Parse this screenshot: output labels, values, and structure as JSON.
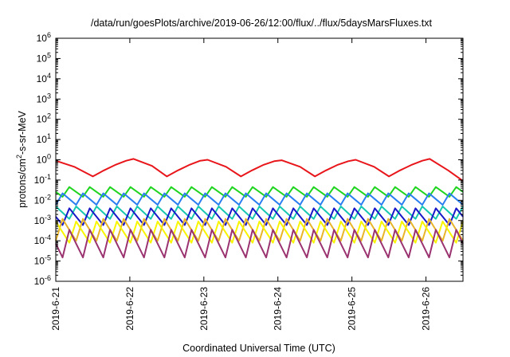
{
  "chart_data": {
    "type": "line",
    "title": "/data/run/goesPlots/archive/2019-06-26/12:00/flux/../flux/5daysMarsFluxes.txt",
    "xlabel": "Coordinated Universal Time (UTC)",
    "ylabel": "protons/cm2-s-sr-MeV",
    "y_scale": "log",
    "ylim": [
      1e-06,
      1000000.0
    ],
    "x_ticks": [
      "2019-6-21",
      "2019-6-22",
      "2019-6-23",
      "2019-6-24",
      "2019-6-25",
      "2019-6-26"
    ],
    "y_ticks": [
      {
        "base": "10",
        "exp": "-6"
      },
      {
        "base": "10",
        "exp": "-5"
      },
      {
        "base": "10",
        "exp": "-4"
      },
      {
        "base": "10",
        "exp": "-3"
      },
      {
        "base": "10",
        "exp": "-2"
      },
      {
        "base": "10",
        "exp": "-1"
      },
      {
        "base": "10",
        "exp": "0"
      },
      {
        "base": "10",
        "exp": "1"
      },
      {
        "base": "10",
        "exp": "2"
      },
      {
        "base": "10",
        "exp": "3"
      },
      {
        "base": "10",
        "exp": "4"
      },
      {
        "base": "10",
        "exp": "5"
      },
      {
        "base": "10",
        "exp": "6"
      }
    ],
    "grid": false,
    "legend": "none",
    "series": [
      {
        "color": "#e8151a",
        "x": [
          0,
          0.25,
          0.5,
          0.65,
          0.8,
          0.95,
          1.05,
          1.3,
          1.5,
          1.65,
          1.8,
          1.95,
          2.05,
          2.3,
          2.5,
          2.65,
          2.8,
          2.95,
          3.05,
          3.3,
          3.5,
          3.65,
          3.8,
          3.95,
          4.05,
          4.3,
          4.5,
          4.65,
          4.8,
          4.95,
          5.05,
          5.3,
          5.5
        ],
        "y": [
          0.9,
          0.45,
          0.15,
          0.3,
          0.55,
          0.9,
          1.1,
          0.5,
          0.15,
          0.3,
          0.55,
          0.9,
          1.0,
          0.45,
          0.15,
          0.3,
          0.55,
          0.85,
          0.95,
          0.45,
          0.15,
          0.3,
          0.55,
          0.85,
          1.0,
          0.45,
          0.15,
          0.3,
          0.55,
          0.9,
          1.1,
          0.3,
          0.09
        ]
      },
      {
        "color": "#1ed41e",
        "x": [
          0,
          5.5
        ],
        "y": [
          0.024,
          0.024
        ],
        "amplitude": [
          0.015,
          0.045
        ]
      },
      {
        "color": "#2a7ef0",
        "x": [
          0,
          5.5
        ],
        "y": [
          0.011,
          0.011
        ],
        "amplitude": [
          0.006,
          0.022
        ]
      },
      {
        "color": "#18c7b0",
        "x": [
          0,
          5.5
        ],
        "y": [
          0.0025,
          0.0025
        ],
        "amplitude": [
          0.0012,
          0.005
        ]
      },
      {
        "color": "#1818c8",
        "x": [
          0,
          5.5
        ],
        "y": [
          0.0015,
          0.0015
        ],
        "amplitude": [
          0.0006,
          0.004
        ]
      },
      {
        "color": "#e8b52a",
        "x": [
          0,
          5.5
        ],
        "y": [
          0.0004,
          0.0004
        ],
        "amplitude": [
          0.0001,
          0.0012
        ]
      },
      {
        "color": "#f8f500",
        "x": [
          0,
          5.5
        ],
        "y": [
          0.0003,
          0.0003
        ],
        "amplitude": [
          8e-05,
          0.0009
        ]
      },
      {
        "color": "#9a3370",
        "x": [
          0,
          5.5
        ],
        "y": [
          8e-05,
          8e-05
        ],
        "amplitude": [
          1.5e-05,
          0.00035
        ]
      }
    ]
  }
}
